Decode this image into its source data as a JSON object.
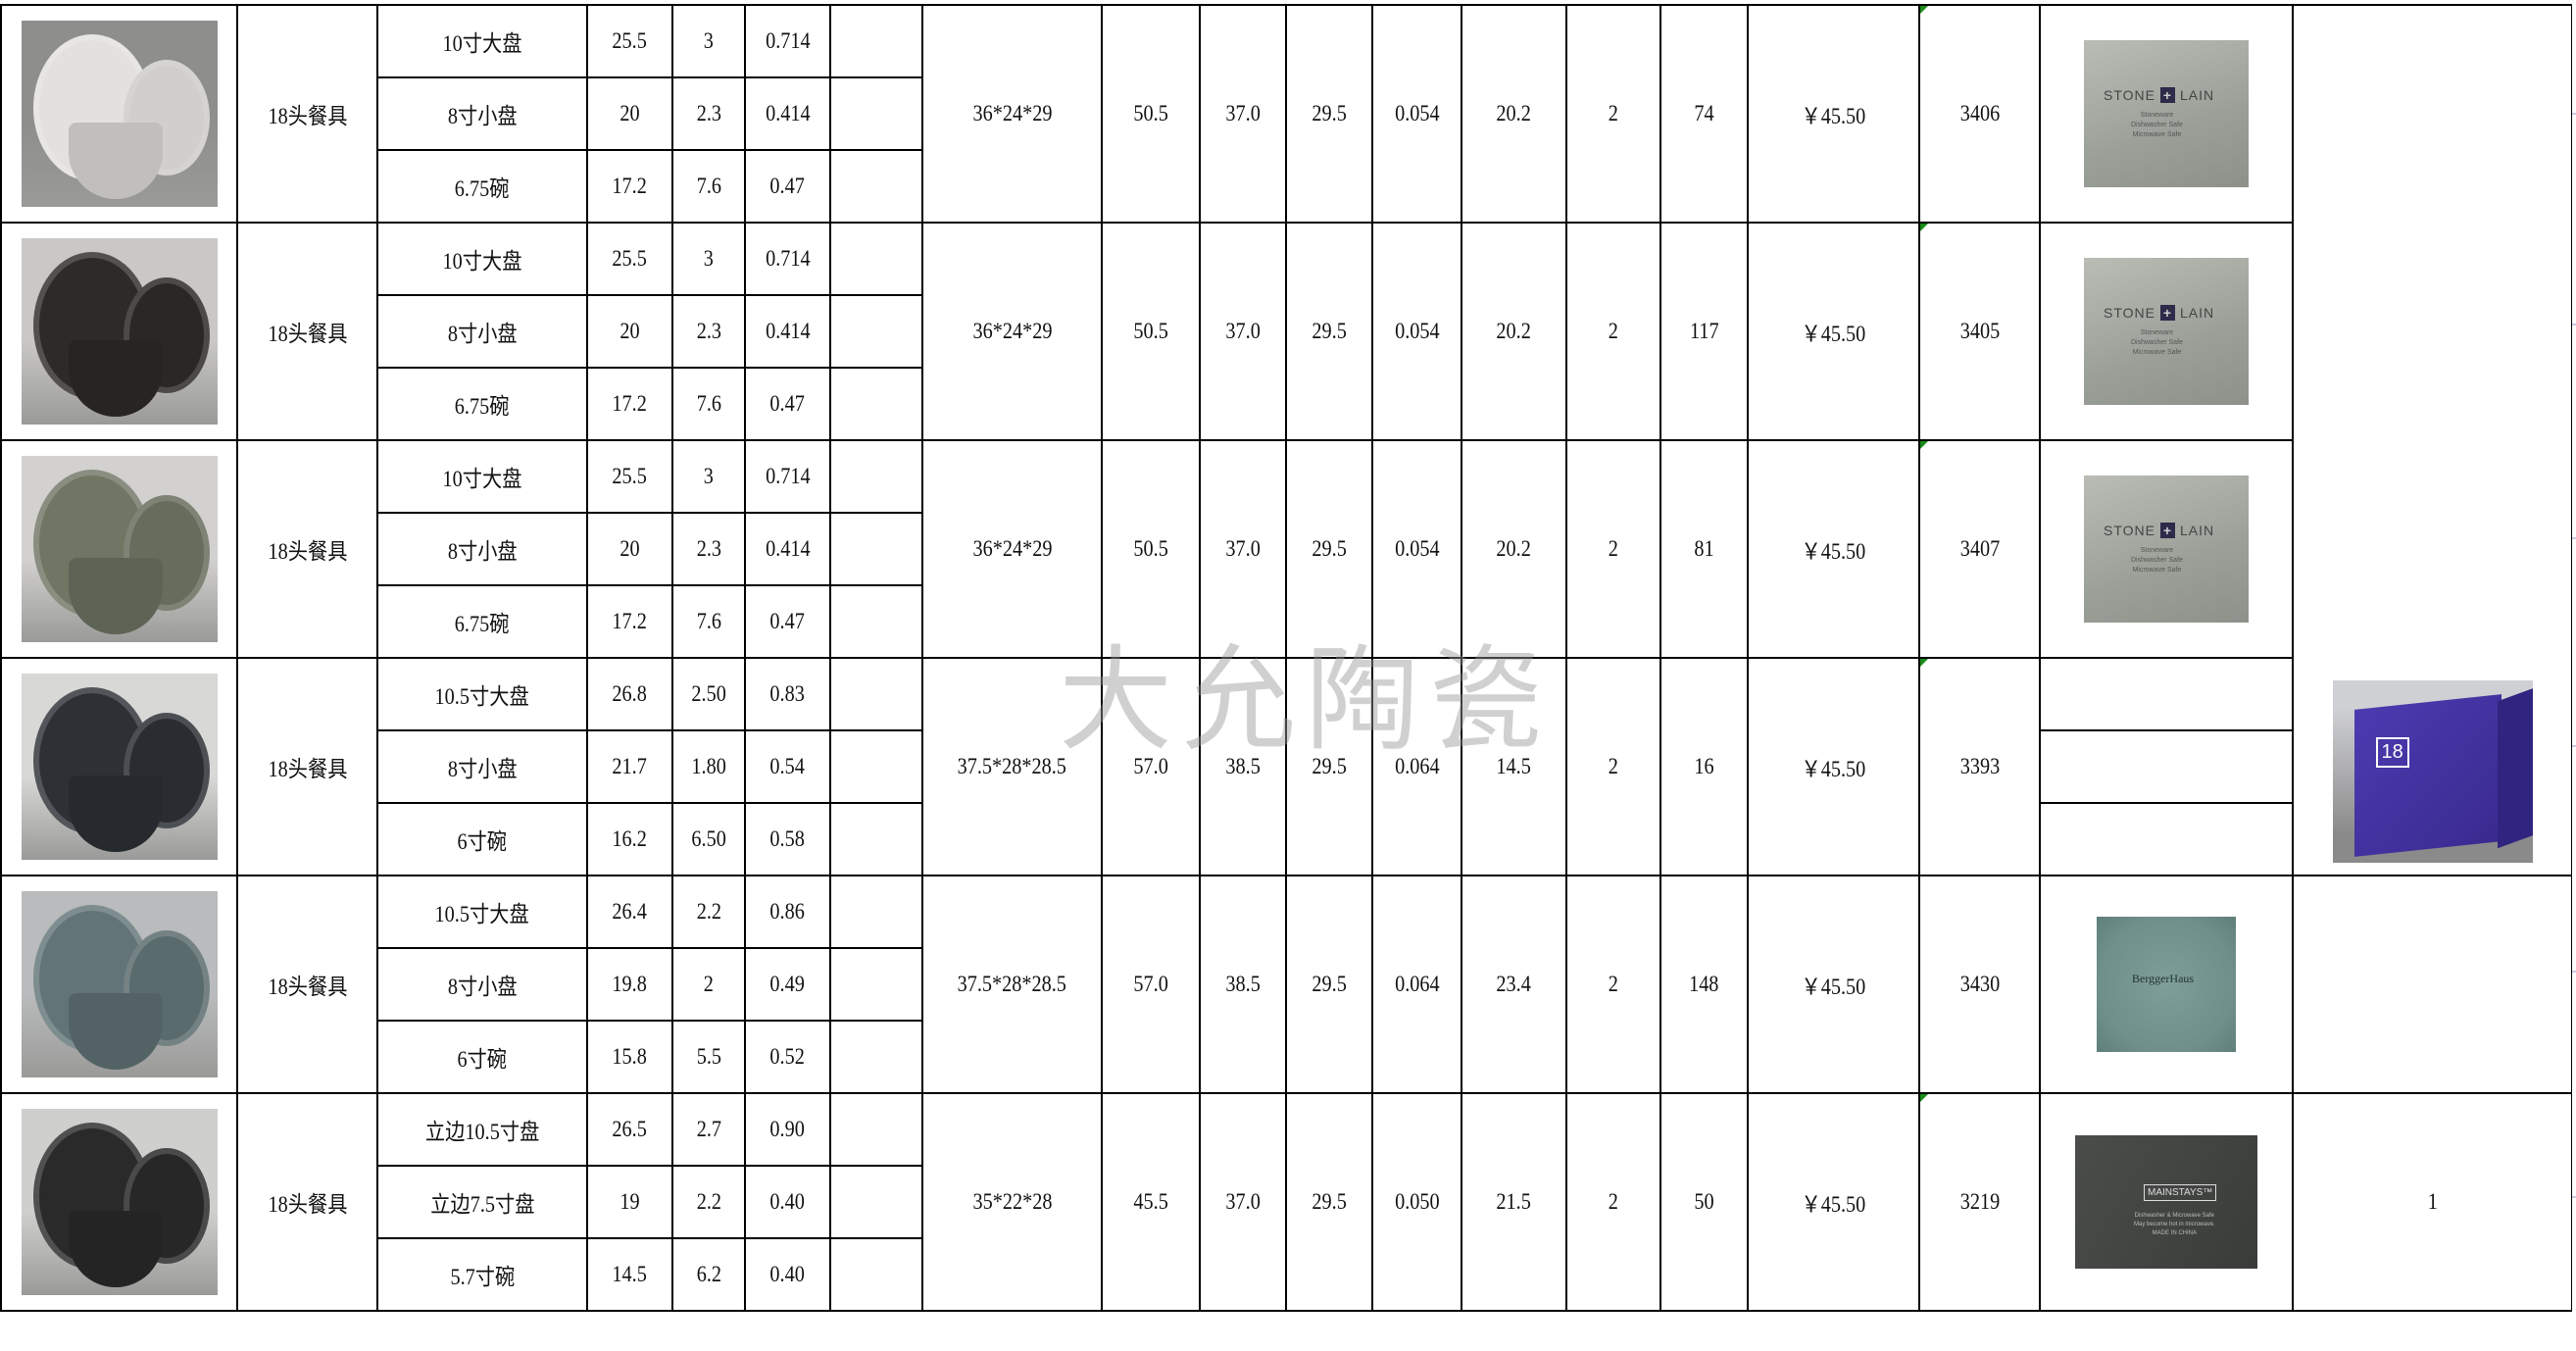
{
  "watermark": "大允陶瓷",
  "rows": [
    {
      "set_name": "18头餐具",
      "colors": {
        "bg": "#8e8f8d",
        "ware": "#e3e1de"
      },
      "items": [
        {
          "name": "10寸大盘",
          "v1": "25.5",
          "v2": "3",
          "v3": "0.714"
        },
        {
          "name": "8寸小盘",
          "v1": "20",
          "v2": "2.3",
          "v3": "0.414"
        },
        {
          "name": "6.75碗",
          "v1": "17.2",
          "v2": "7.6",
          "v3": "0.47"
        }
      ],
      "carton": "36*24*29",
      "c1": "50.5",
      "c2": "37.0",
      "c3": "29.5",
      "c4": "0.054",
      "c5": "20.2",
      "c6": "2",
      "qty": "74",
      "price": "￥45.50",
      "code": "3406",
      "brand": {
        "type": "stone",
        "logo": "STONE + LAIN",
        "lines": [
          "Stoneware",
          "Dishwasher Safe",
          "Microwave Safe"
        ]
      }
    },
    {
      "set_name": "18头餐具",
      "colors": {
        "bg": "#c9c8c6",
        "ware": "#2e2a28"
      },
      "items": [
        {
          "name": "10寸大盘",
          "v1": "25.5",
          "v2": "3",
          "v3": "0.714"
        },
        {
          "name": "8寸小盘",
          "v1": "20",
          "v2": "2.3",
          "v3": "0.414"
        },
        {
          "name": "6.75碗",
          "v1": "17.2",
          "v2": "7.6",
          "v3": "0.47"
        }
      ],
      "carton": "36*24*29",
      "c1": "50.5",
      "c2": "37.0",
      "c3": "29.5",
      "c4": "0.054",
      "c5": "20.2",
      "c6": "2",
      "qty": "117",
      "price": "￥45.50",
      "code": "3405",
      "brand": {
        "type": "stone",
        "logo": "STONE + LAIN",
        "lines": [
          "Stoneware",
          "Dishwasher Safe",
          "Microwave Safe"
        ]
      }
    },
    {
      "set_name": "18头餐具",
      "colors": {
        "bg": "#d2d1cf",
        "ware": "#6f7664"
      },
      "items": [
        {
          "name": "10寸大盘",
          "v1": "25.5",
          "v2": "3",
          "v3": "0.714"
        },
        {
          "name": "8寸小盘",
          "v1": "20",
          "v2": "2.3",
          "v3": "0.414"
        },
        {
          "name": "6.75碗",
          "v1": "17.2",
          "v2": "7.6",
          "v3": "0.47"
        }
      ],
      "carton": "36*24*29",
      "c1": "50.5",
      "c2": "37.0",
      "c3": "29.5",
      "c4": "0.054",
      "c5": "20.2",
      "c6": "2",
      "qty": "81",
      "price": "￥45.50",
      "code": "3407",
      "brand": {
        "type": "stone",
        "logo": "STONE + LAIN",
        "lines": [
          "Stoneware",
          "Dishwasher Safe",
          "Microwave Safe"
        ]
      }
    },
    {
      "set_name": "18头餐具",
      "colors": {
        "bg": "#d8d8d6",
        "ware": "#2d3136"
      },
      "items": [
        {
          "name": "10.5寸大盘",
          "v1": "26.8",
          "v2": "2.50",
          "v3": "0.83"
        },
        {
          "name": "8寸小盘",
          "v1": "21.7",
          "v2": "1.80",
          "v3": "0.54"
        },
        {
          "name": "6寸碗",
          "v1": "16.2",
          "v2": "6.50",
          "v3": "0.58"
        }
      ],
      "carton": "37.5*28*28.5",
      "c1": "57.0",
      "c2": "38.5",
      "c3": "29.5",
      "c4": "0.064",
      "c5": "14.5",
      "c6": "2",
      "qty": "16",
      "price": "￥45.50",
      "code": "3393",
      "brand": {
        "type": "split"
      }
    },
    {
      "set_name": "18头餐具",
      "colors": {
        "bg": "#b9bbbc",
        "ware": "#627477"
      },
      "items": [
        {
          "name": "10.5寸大盘",
          "v1": "26.4",
          "v2": "2.2",
          "v3": "0.86"
        },
        {
          "name": "8寸小盘",
          "v1": "19.8",
          "v2": "2",
          "v3": "0.49"
        },
        {
          "name": "6寸碗",
          "v1": "15.8",
          "v2": "5.5",
          "v3": "0.52"
        }
      ],
      "carton": "37.5*28*28.5",
      "c1": "57.0",
      "c2": "38.5",
      "c3": "29.5",
      "c4": "0.064",
      "c5": "23.4",
      "c6": "2",
      "qty": "148",
      "price": "￥45.50",
      "code": "3430",
      "brand": {
        "type": "berg",
        "logo": "BerggerHaus"
      }
    },
    {
      "set_name": "18头餐具",
      "colors": {
        "bg": "#cfcfcd",
        "ware": "#2a2a2a"
      },
      "items": [
        {
          "name": "立边10.5寸盘",
          "v1": "26.5",
          "v2": "2.7",
          "v3": "0.90"
        },
        {
          "name": "立边7.5寸盘",
          "v1": "19",
          "v2": "2.2",
          "v3": "0.40"
        },
        {
          "name": "5.7寸碗",
          "v1": "14.5",
          "v2": "6.2",
          "v3": "0.40"
        }
      ],
      "carton": "35*22*28",
      "c1": "45.5",
      "c2": "37.0",
      "c3": "29.5",
      "c4": "0.050",
      "c5": "21.5",
      "c6": "2",
      "qty": "50",
      "price": "￥45.50",
      "code": "3219",
      "brand": {
        "type": "main",
        "logo": "MAINSTAYS™",
        "lines": [
          "Dishwasher & Microwave Safe",
          "May become hot in microwave.",
          "MADE IN CHINA"
        ]
      }
    }
  ],
  "last_col": {
    "box_label": "18",
    "row6_value": "1"
  },
  "colors": {
    "grid": "#000000",
    "freeze_line": "#3f9c35",
    "comment_marker": "#1a8c1a"
  }
}
